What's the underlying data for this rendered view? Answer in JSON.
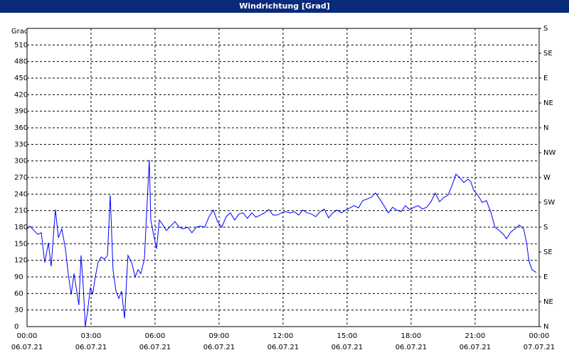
{
  "chart_data": {
    "type": "line",
    "title": "Windrichtung [Grad]",
    "y_label": "Grad",
    "x": [
      0,
      0.13,
      0.33,
      0.5,
      0.67,
      0.83,
      1.0,
      1.13,
      1.33,
      1.47,
      1.63,
      1.8,
      1.93,
      2.07,
      2.2,
      2.33,
      2.43,
      2.53,
      2.63,
      2.73,
      2.83,
      2.97,
      3.07,
      3.2,
      3.33,
      3.47,
      3.63,
      3.77,
      3.9,
      4.03,
      4.17,
      4.3,
      4.43,
      4.57,
      4.73,
      4.9,
      5.07,
      5.2,
      5.33,
      5.5,
      5.73,
      5.8,
      5.93,
      6.07,
      6.2,
      6.33,
      6.53,
      6.73,
      6.93,
      7.13,
      7.33,
      7.53,
      7.73,
      7.93,
      8.13,
      8.33,
      8.53,
      8.73,
      8.93,
      9.13,
      9.33,
      9.53,
      9.73,
      9.93,
      10.13,
      10.33,
      10.53,
      10.73,
      10.93,
      11.13,
      11.33,
      11.53,
      11.73,
      11.93,
      12.13,
      12.33,
      12.53,
      12.73,
      12.93,
      13.13,
      13.33,
      13.53,
      13.73,
      13.93,
      14.13,
      14.33,
      14.53,
      14.73,
      14.93,
      15.13,
      15.33,
      15.53,
      15.73,
      15.93,
      16.13,
      16.33,
      16.53,
      16.73,
      16.93,
      17.13,
      17.33,
      17.53,
      17.73,
      17.93,
      18.13,
      18.33,
      18.53,
      18.73,
      18.93,
      19.13,
      19.33,
      19.53,
      19.73,
      19.93,
      20.1,
      20.27,
      20.47,
      20.67,
      20.8,
      20.93,
      21.13,
      21.33,
      21.53,
      21.73,
      21.93,
      22.13,
      22.33,
      22.47,
      22.67,
      22.87,
      23.07,
      23.27,
      23.4,
      23.53,
      23.67,
      23.87
    ],
    "series": [
      {
        "color": "#0000ff",
        "values": [
          177,
          182,
          174,
          167,
          170,
          116,
          152,
          109,
          212,
          161,
          177,
          141,
          96,
          58,
          96,
          64,
          39,
          129,
          77,
          0,
          26,
          71,
          58,
          90,
          116,
          126,
          122,
          129,
          238,
          103,
          64,
          51,
          64,
          15,
          129,
          116,
          90,
          103,
          96,
          122,
          302,
          193,
          167,
          141,
          193,
          186,
          174,
          182,
          190,
          180,
          177,
          180,
          170,
          180,
          182,
          180,
          199,
          211,
          190,
          180,
          199,
          206,
          193,
          204,
          206,
          196,
          206,
          198,
          202,
          206,
          212,
          202,
          202,
          206,
          208,
          206,
          208,
          202,
          211,
          206,
          204,
          199,
          208,
          213,
          197,
          206,
          211,
          206,
          211,
          215,
          219,
          215,
          228,
          231,
          234,
          242,
          231,
          219,
          206,
          216,
          211,
          208,
          219,
          212,
          216,
          219,
          213,
          216,
          226,
          242,
          226,
          234,
          238,
          257,
          276,
          270,
          261,
          267,
          262,
          247,
          238,
          225,
          228,
          208,
          180,
          174,
          167,
          159,
          171,
          177,
          184,
          177,
          154,
          118,
          103,
          98
        ]
      }
    ],
    "xlim": [
      0,
      24
    ],
    "xticks": [
      {
        "value": 0,
        "label": "00:00"
      },
      {
        "value": 3,
        "label": "03:00"
      },
      {
        "value": 6,
        "label": "06:00"
      },
      {
        "value": 9,
        "label": "09:00"
      },
      {
        "value": 12,
        "label": "12:00"
      },
      {
        "value": 15,
        "label": "15:00"
      },
      {
        "value": 18,
        "label": "18:00"
      },
      {
        "value": 21,
        "label": "21:00"
      },
      {
        "value": 24,
        "label": "00:00"
      }
    ],
    "xtick_dates": [
      "06.07.21",
      "06.07.21",
      "06.07.21",
      "06.07.21",
      "06.07.21",
      "06.07.21",
      "06.07.21",
      "06.07.21",
      "07.07.21"
    ],
    "ylim": [
      0,
      540
    ],
    "yticks": [
      0,
      30,
      60,
      90,
      120,
      150,
      180,
      210,
      240,
      270,
      300,
      330,
      360,
      390,
      420,
      450,
      480,
      510
    ],
    "y2lim": [
      0,
      540
    ],
    "y2ticks": [
      {
        "value": 0,
        "label": "N"
      },
      {
        "value": 45,
        "label": "NE"
      },
      {
        "value": 90,
        "label": "E"
      },
      {
        "value": 135,
        "label": "SE"
      },
      {
        "value": 180,
        "label": "S"
      },
      {
        "value": 225,
        "label": "SW"
      },
      {
        "value": 270,
        "label": "W"
      },
      {
        "value": 315,
        "label": "NW"
      },
      {
        "value": 360,
        "label": "N"
      },
      {
        "value": 405,
        "label": "NE"
      },
      {
        "value": 450,
        "label": "E"
      },
      {
        "value": 495,
        "label": "SE"
      },
      {
        "value": 540,
        "label": "S"
      }
    ],
    "grid": true
  }
}
